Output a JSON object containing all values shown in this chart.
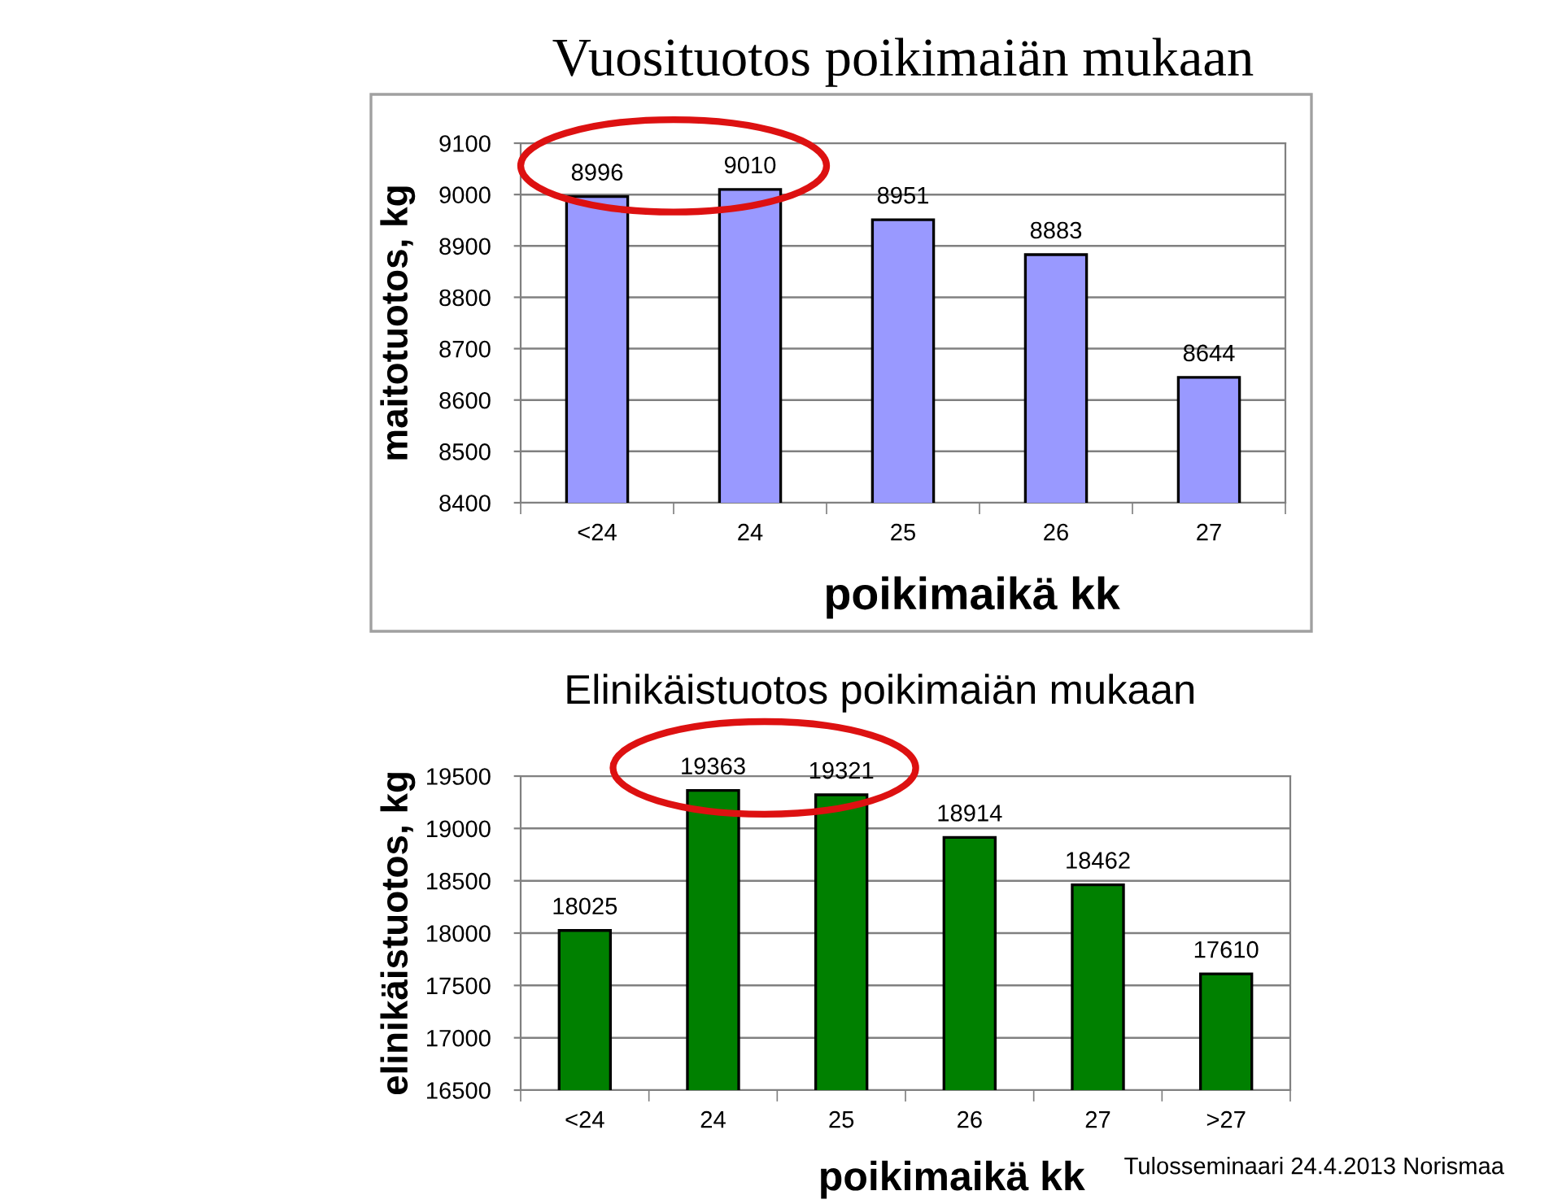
{
  "chart_data": [
    {
      "type": "bar",
      "title": "Vuosituotos poikimaiän mukaan",
      "xlabel": "poikimaikä kk",
      "ylabel": "maitotuotos, kg",
      "categories": [
        "<24",
        "24",
        "25",
        "26",
        "27"
      ],
      "values": [
        8996,
        9010,
        8951,
        8883,
        8644
      ],
      "color": "#9999ff",
      "ylim": [
        8400,
        9100
      ],
      "yticks": [
        8400,
        8500,
        8600,
        8700,
        8800,
        8900,
        9000,
        9100
      ],
      "grid": "y",
      "data_labels": true
    },
    {
      "type": "bar",
      "title": "Elinikäistuotos poikimaiän mukaan",
      "xlabel": "poikimaikä kk",
      "ylabel": "elinikäistuotos, kg",
      "categories": [
        "<24",
        "24",
        "25",
        "26",
        "27",
        ">27"
      ],
      "values": [
        18025,
        19363,
        19321,
        18914,
        18462,
        17610
      ],
      "color": "#008000",
      "ylim": [
        16500,
        19500
      ],
      "yticks": [
        16500,
        17000,
        17500,
        18000,
        18500,
        19000,
        19500
      ],
      "grid": "y",
      "data_labels": true,
      "annotations": [
        "Tulosseminaari 24.4.2013 Norismaa"
      ]
    }
  ]
}
